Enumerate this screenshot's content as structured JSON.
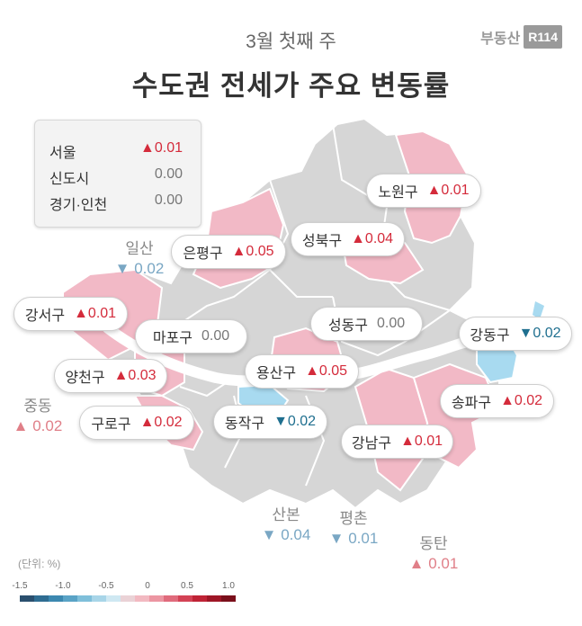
{
  "header": {
    "subtitle": "3월 첫째 주",
    "title": "수도권 전세가 주요 변동률",
    "brand_text": "부동산",
    "brand_logo": "R114"
  },
  "summary": [
    {
      "name": "서울",
      "value": "▲0.01",
      "dir": "up"
    },
    {
      "name": "신도시",
      "value": "0.00",
      "dir": "flat"
    },
    {
      "name": "경기·인천",
      "value": "0.00",
      "dir": "flat"
    }
  ],
  "districts": [
    {
      "name": "노원구",
      "value": "▲0.01",
      "dir": "up"
    },
    {
      "name": "은평구",
      "value": "▲0.05",
      "dir": "up"
    },
    {
      "name": "성북구",
      "value": "▲0.04",
      "dir": "up"
    },
    {
      "name": "강서구",
      "value": "▲0.01",
      "dir": "up"
    },
    {
      "name": "성동구",
      "value": "0.00",
      "dir": "flat"
    },
    {
      "name": "마포구",
      "value": "0.00",
      "dir": "flat"
    },
    {
      "name": "강동구",
      "value": "▼0.02",
      "dir": "down"
    },
    {
      "name": "양천구",
      "value": "▲0.03",
      "dir": "up"
    },
    {
      "name": "용산구",
      "value": "▲0.05",
      "dir": "up"
    },
    {
      "name": "송파구",
      "value": "▲0.02",
      "dir": "up"
    },
    {
      "name": "구로구",
      "value": "▲0.02",
      "dir": "up"
    },
    {
      "name": "동작구",
      "value": "▼0.02",
      "dir": "down"
    },
    {
      "name": "강남구",
      "value": "▲0.01",
      "dir": "up"
    }
  ],
  "outside": [
    {
      "name": "일산",
      "value": "▼ 0.02",
      "dir": "down"
    },
    {
      "name": "중동",
      "value": "▲ 0.02",
      "dir": "up"
    },
    {
      "name": "산본",
      "value": "▼ 0.04",
      "dir": "down"
    },
    {
      "name": "평촌",
      "value": "▼ 0.01",
      "dir": "down"
    },
    {
      "name": "동탄",
      "value": "▲ 0.01",
      "dir": "up"
    }
  ],
  "scale": {
    "unit": "(단위: %)",
    "ticks": [
      "-1.5",
      "-1.0",
      "-0.5",
      "0",
      "0.5",
      "1.0"
    ],
    "colors": [
      "#2a4f6e",
      "#2f6d92",
      "#3c88b0",
      "#5aa3c6",
      "#7fbfda",
      "#a8d5e8",
      "#cfe8f2",
      "#ead2d6",
      "#f2b9c1",
      "#ec96a2",
      "#e06b7c",
      "#d34255",
      "#bf2336",
      "#9e1626",
      "#7a0f1b"
    ]
  },
  "colors": {
    "up_fill": "#f2b9c6",
    "down_fill": "#a8daf0",
    "neutral_fill": "#d6d6d6",
    "river": "#ffffff",
    "up_text": "#d42b3b",
    "down_text": "#1f6f8f"
  }
}
